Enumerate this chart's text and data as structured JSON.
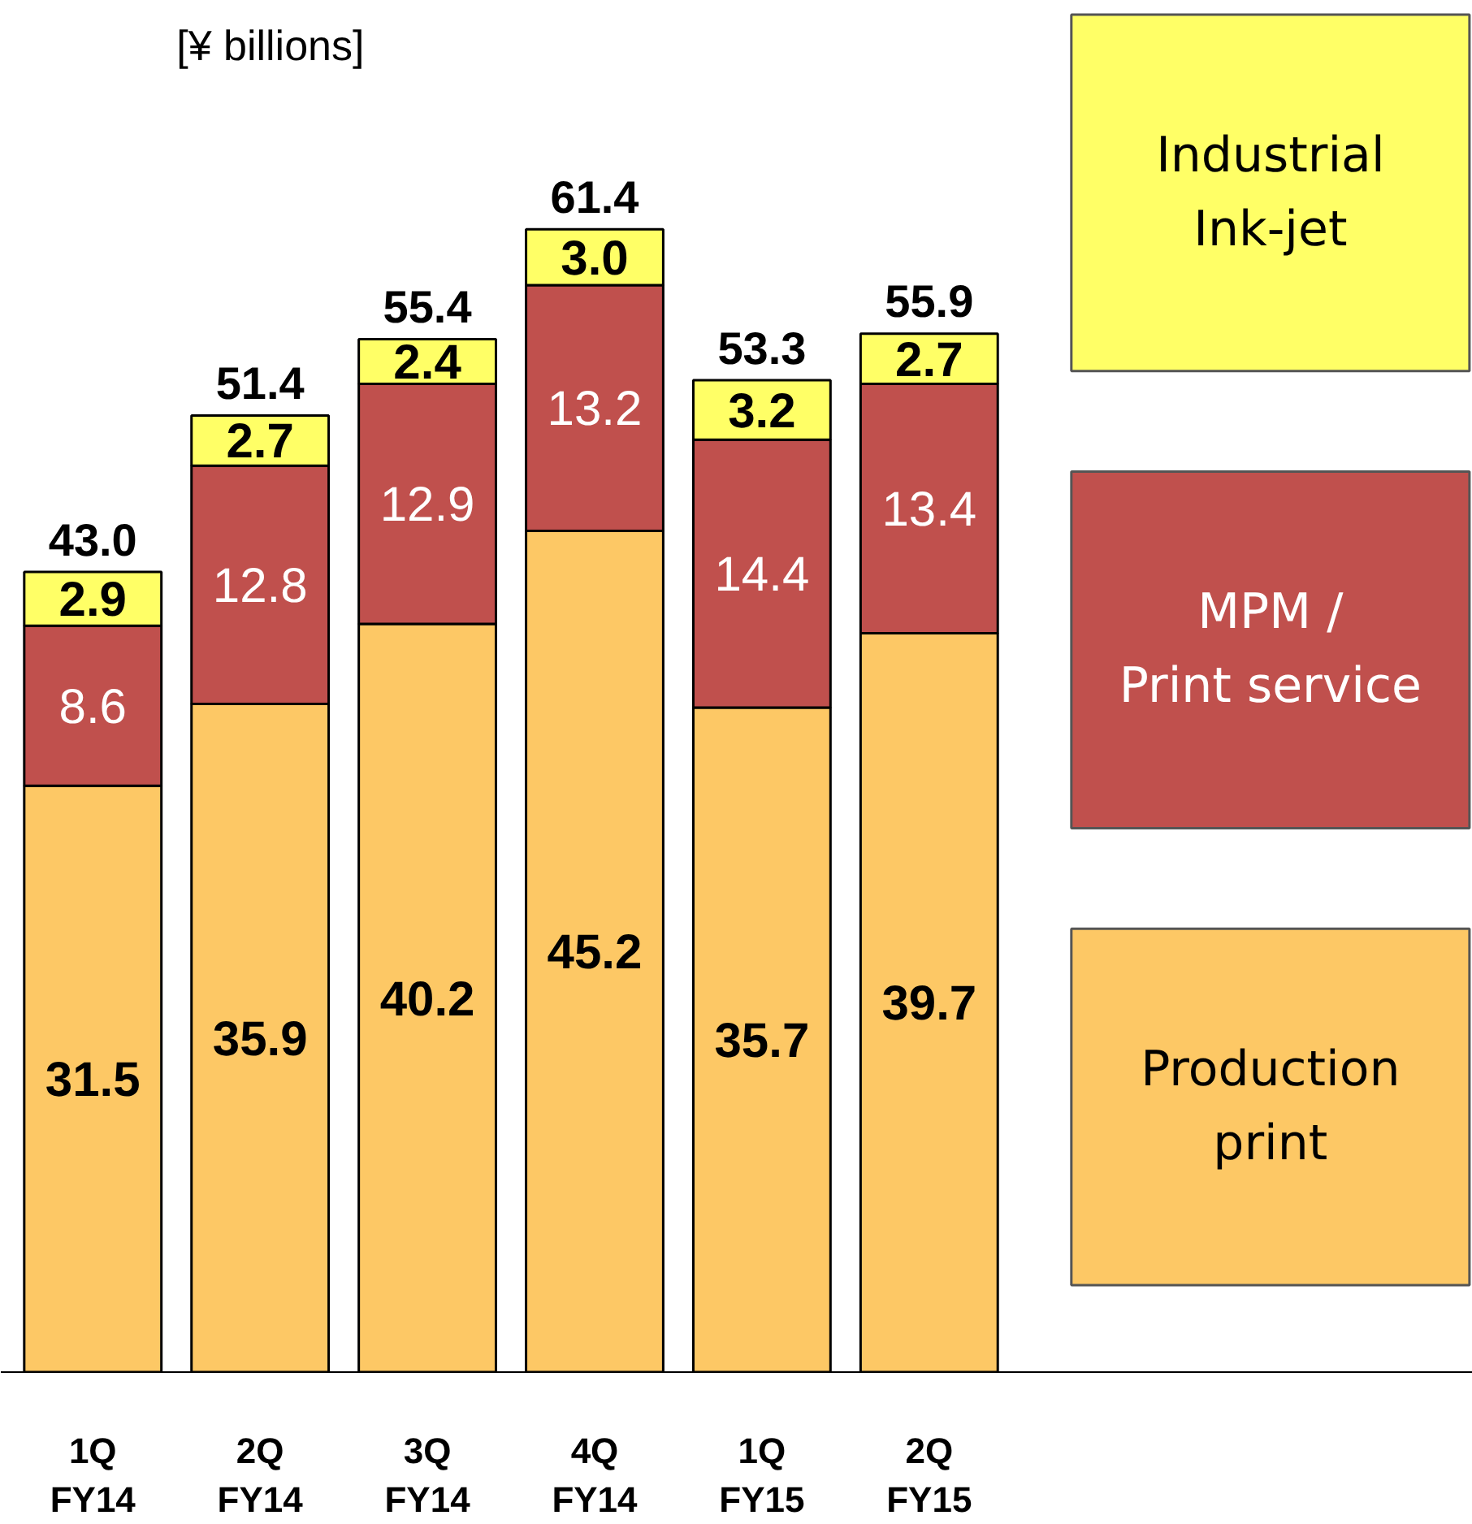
{
  "chart_data": {
    "type": "bar",
    "stacked": true,
    "ylabel": "[¥ billions]",
    "categories": [
      "1Q\nFY14",
      "2Q\nFY14",
      "3Q\nFY14",
      "4Q\nFY14",
      "1Q\nFY15",
      "2Q\nFY15"
    ],
    "series": [
      {
        "name": "Production\nprint",
        "color": "#fdc865",
        "values": [
          31.5,
          35.9,
          40.2,
          45.2,
          35.7,
          39.7
        ],
        "value_labels": [
          "31.5",
          "35.9",
          "40.2",
          "45.2",
          "35.7",
          "39.7"
        ]
      },
      {
        "name": "MPM /\nPrint service",
        "color": "#c0504d",
        "values": [
          8.6,
          12.8,
          12.9,
          13.2,
          14.4,
          13.4
        ],
        "value_labels": [
          "8.6",
          "12.8",
          "12.9",
          "13.2",
          "14.4",
          "13.4"
        ]
      },
      {
        "name": "Industrial\nInk-jet",
        "color": "#ffff66",
        "values": [
          2.9,
          2.7,
          2.4,
          3.0,
          3.2,
          2.7
        ],
        "value_labels": [
          "2.9",
          "2.7",
          "2.4",
          "3.0",
          "3.2",
          "2.7"
        ]
      }
    ],
    "totals": [
      "43.0",
      "51.4",
      "55.4",
      "61.4",
      "53.3",
      "55.9"
    ],
    "legend": "right",
    "grid": false
  }
}
